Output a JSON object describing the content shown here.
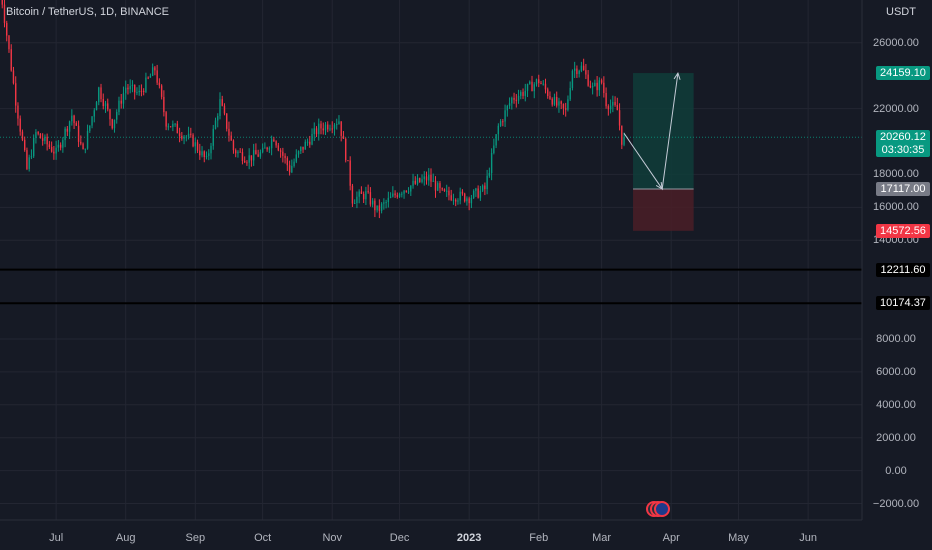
{
  "header": {
    "title": "Bitcoin / TetherUS, 1D, BINANCE",
    "currency": "USDT"
  },
  "colors": {
    "background": "#161a25",
    "grid": "#232632",
    "up": "#089981",
    "down": "#f23645",
    "target_zone": "#0f3d3a",
    "stop_zone": "#4a1f27",
    "line_level": "#000000"
  },
  "chart_data": {
    "type": "candlestick",
    "title": "Bitcoin / TetherUS, 1D, BINANCE",
    "ylabel": "USDT",
    "ylim": [
      -3000,
      28600
    ],
    "yticks": [
      -2000,
      0,
      2000,
      4000,
      6000,
      8000,
      14000,
      16000,
      18000,
      22000,
      26000
    ],
    "ytick_labels": [
      "−2000.00",
      "0.00",
      "2000.00",
      "4000.00",
      "6000.00",
      "8000.00",
      "14000.00",
      "16000.00",
      "18000.00",
      "22000.00",
      "26000.00"
    ],
    "xticks": [
      {
        "date": "2022-07-01",
        "label": "Jul"
      },
      {
        "date": "2022-08-01",
        "label": "Aug"
      },
      {
        "date": "2022-09-01",
        "label": "Sep"
      },
      {
        "date": "2022-10-01",
        "label": "Oct"
      },
      {
        "date": "2022-11-01",
        "label": "Nov"
      },
      {
        "date": "2022-12-01",
        "label": "Dec"
      },
      {
        "date": "2023-01-01",
        "label": "2023",
        "year": true
      },
      {
        "date": "2023-02-01",
        "label": "Feb"
      },
      {
        "date": "2023-03-01",
        "label": "Mar"
      },
      {
        "date": "2023-04-01",
        "label": "Apr"
      },
      {
        "date": "2023-05-01",
        "label": "May"
      },
      {
        "date": "2023-06-01",
        "label": "Jun"
      }
    ],
    "xlim": [
      "2022-06-06",
      "2023-06-25"
    ],
    "price_path": [
      [
        "2022-06-06",
        29500
      ],
      [
        "2022-06-13",
        22500
      ],
      [
        "2022-06-18",
        18300
      ],
      [
        "2022-06-22",
        20500
      ],
      [
        "2022-07-01",
        19300
      ],
      [
        "2022-07-08",
        21600
      ],
      [
        "2022-07-13",
        19300
      ],
      [
        "2022-07-20",
        23200
      ],
      [
        "2022-07-26",
        21100
      ],
      [
        "2022-08-01",
        23300
      ],
      [
        "2022-08-07",
        22900
      ],
      [
        "2022-08-14",
        24400
      ],
      [
        "2022-08-19",
        21200
      ],
      [
        "2022-08-26",
        20500
      ],
      [
        "2022-08-31",
        20000
      ],
      [
        "2022-09-06",
        18800
      ],
      [
        "2022-09-12",
        22400
      ],
      [
        "2022-09-18",
        19500
      ],
      [
        "2022-09-24",
        19000
      ],
      [
        "2022-10-01",
        19300
      ],
      [
        "2022-10-06",
        20300
      ],
      [
        "2022-10-13",
        18300
      ],
      [
        "2022-10-18",
        19500
      ],
      [
        "2022-10-26",
        20800
      ],
      [
        "2022-11-04",
        21300
      ],
      [
        "2022-11-08",
        18500
      ],
      [
        "2022-11-10",
        16500
      ],
      [
        "2022-11-16",
        16800
      ],
      [
        "2022-11-21",
        15800
      ],
      [
        "2022-12-01",
        17000
      ],
      [
        "2022-12-14",
        17800
      ],
      [
        "2022-12-20",
        16800
      ],
      [
        "2023-01-01",
        16600
      ],
      [
        "2023-01-08",
        17100
      ],
      [
        "2023-01-14",
        20900
      ],
      [
        "2023-01-20",
        22600
      ],
      [
        "2023-01-25",
        23000
      ],
      [
        "2023-02-01",
        23700
      ],
      [
        "2023-02-09",
        22200
      ],
      [
        "2023-02-13",
        21800
      ],
      [
        "2023-02-16",
        24400
      ],
      [
        "2023-02-20",
        24500
      ],
      [
        "2023-02-25",
        23200
      ],
      [
        "2023-03-01",
        23600
      ],
      [
        "2023-03-03",
        22400
      ],
      [
        "2023-03-08",
        21900
      ],
      [
        "2023-03-10",
        20100
      ],
      [
        "2023-03-11",
        20260
      ]
    ],
    "horizontal_levels": [
      {
        "value": 12211.6,
        "label": "12211.60"
      },
      {
        "value": 10174.37,
        "label": "10174.37"
      }
    ],
    "position": {
      "start": "2023-03-15",
      "end": "2023-04-11",
      "entry": 17117.0,
      "target": 24159.1,
      "stop": 14572.56,
      "entry_label": "17117.00",
      "target_label": "24159.10",
      "stop_label": "14572.56"
    },
    "projection": [
      [
        "2023-03-11",
        20500
      ],
      [
        "2023-03-28",
        17117
      ],
      [
        "2023-04-04",
        24159.1
      ]
    ],
    "last_price": {
      "value": 20260.12,
      "label": "20260.12",
      "countdown": "03:30:35"
    }
  }
}
